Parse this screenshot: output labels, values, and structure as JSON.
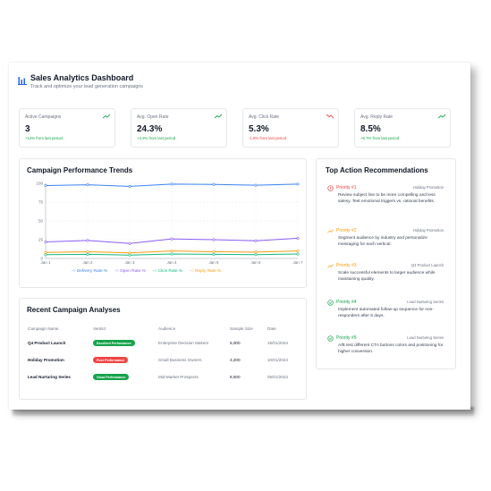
{
  "header": {
    "title": "Sales Analytics Dashboard",
    "subtitle": "Track and optimize your lead generation campaigns"
  },
  "kpis": [
    {
      "label": "Active Campaigns",
      "value": "3",
      "change": "+12% from last period",
      "direction": "up"
    },
    {
      "label": "Avg. Open Rate",
      "value": "24.3%",
      "change": "+3.2% from last period",
      "direction": "up"
    },
    {
      "label": "Avg. Click Rate",
      "value": "5.3%",
      "change": "-1.6% from last period",
      "direction": "down"
    },
    {
      "label": "Avg. Reply Rate",
      "value": "8.5%",
      "change": "+8.7% from last period",
      "direction": "up"
    }
  ],
  "trends": {
    "title": "Campaign Performance Trends"
  },
  "chart_data": {
    "type": "line",
    "title": "Campaign Performance Trends",
    "categories": [
      "Jan 1",
      "Jan 2",
      "Jan 3",
      "Jan 4",
      "Jan 5",
      "Jan 6",
      "Jan 7"
    ],
    "yticks": [
      "100",
      "75",
      "50",
      "25",
      "0"
    ],
    "ylim": [
      0,
      100
    ],
    "grid": true,
    "legend_position": "bottom",
    "series": [
      {
        "name": "Delivery Rate %",
        "color": "#3b82f6",
        "values": [
          97,
          98,
          96,
          99,
          98.5,
          97.5,
          99
        ]
      },
      {
        "name": "Open Rate %",
        "color": "#8b5cf6",
        "values": [
          22,
          24,
          20,
          26,
          25,
          23.5,
          27
        ]
      },
      {
        "name": "Click Rate %",
        "color": "#10b981",
        "values": [
          5,
          5.5,
          4.5,
          6,
          5.5,
          5,
          6
        ]
      },
      {
        "name": "Reply Rate %",
        "color": "#f59e0b",
        "values": [
          8,
          9,
          7.5,
          10,
          9,
          8.5,
          10
        ]
      }
    ]
  },
  "recent": {
    "title": "Recent Campaign Analyses",
    "columns": [
      "Campaign Name",
      "Verdict",
      "Audience",
      "Sample Size",
      "Date"
    ],
    "rows": [
      {
        "name": "Q4 Product Launch",
        "verdict": "Excellent Performance",
        "verdict_color": "#16a34a",
        "audience": "Enterprise Decision Makers",
        "size": "5,000",
        "date": "15/01/2024"
      },
      {
        "name": "Holiday Promotion",
        "verdict": "Poor Performance",
        "verdict_color": "#ef4444",
        "audience": "Small Business Owners",
        "size": "3,200",
        "date": "10/01/2024"
      },
      {
        "name": "Lead Nurturing Series",
        "verdict": "Good Performance",
        "verdict_color": "#16a34a",
        "audience": "Mid-Market Prospects",
        "size": "8,500",
        "date": "05/01/2024"
      }
    ]
  },
  "recommendations": {
    "title": "Top Action Recommendations",
    "items": [
      {
        "priority": "Priority #1",
        "campaign": "Holiday Promotion",
        "text": "Review subject line to be more compelling and less salesy. Test emotional triggers vs. rational benefits.",
        "color": "#ef4444",
        "icon": "alert-circle-icon"
      },
      {
        "priority": "Priority #2",
        "campaign": "Holiday Promotion",
        "text": "Segment audience by industry and personalize messaging for each vertical.",
        "color": "#f59e0b",
        "icon": "trend-up-icon"
      },
      {
        "priority": "Priority #3",
        "campaign": "Q4 Product Launch",
        "text": "Scale successful elements to larger audience while maintaining quality.",
        "color": "#f59e0b",
        "icon": "trend-up-icon"
      },
      {
        "priority": "Priority #4",
        "campaign": "Lead Nurturing Series",
        "text": "Implement automated follow-up sequence for non-responders after 5 days.",
        "color": "#16a34a",
        "icon": "check-circle-icon"
      },
      {
        "priority": "Priority #5",
        "campaign": "Lead Nurturing Series",
        "text": "A/B test different CTA buttons colors and positioning for higher conversion.",
        "color": "#16a34a",
        "icon": "check-circle-icon"
      }
    ]
  }
}
